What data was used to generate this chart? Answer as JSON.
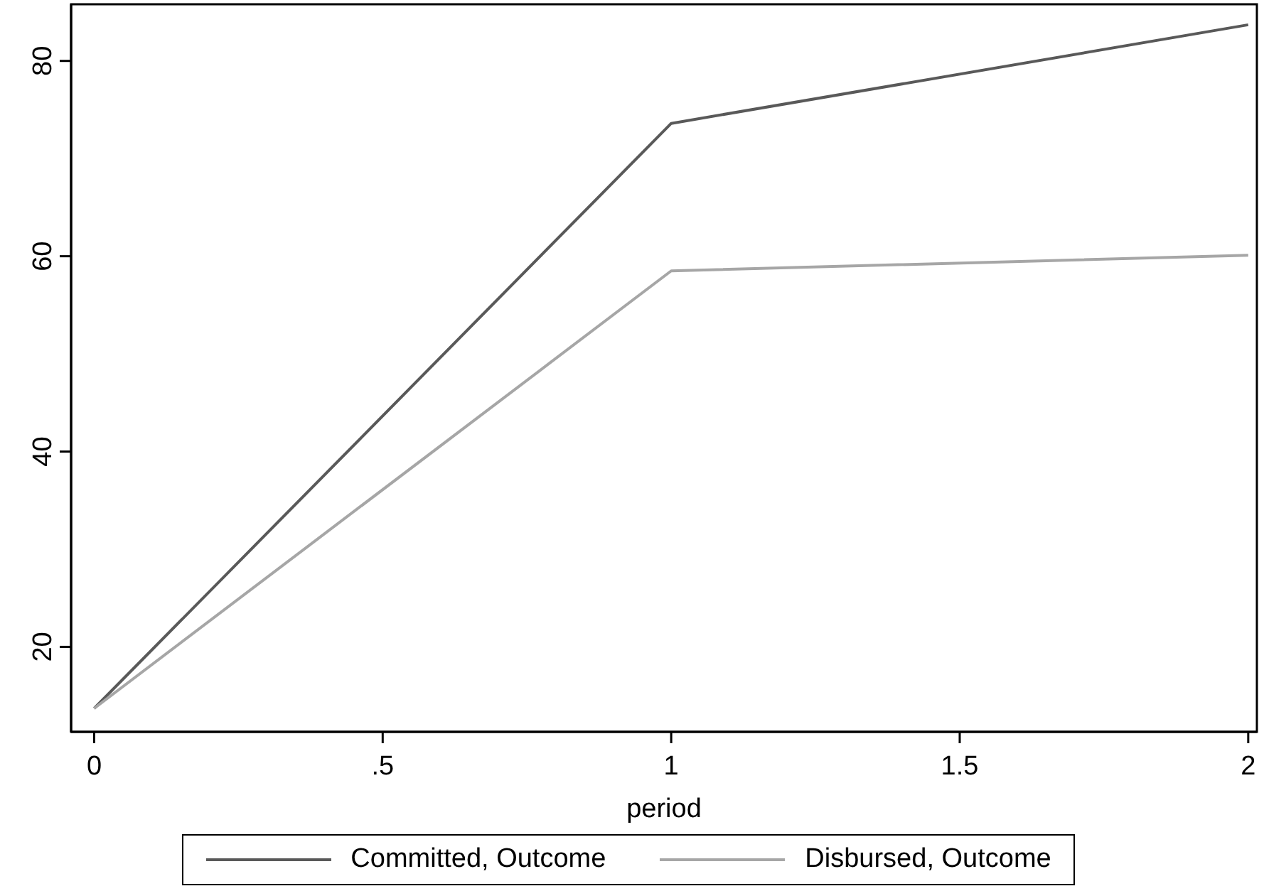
{
  "chart_data": {
    "type": "line",
    "xlabel": "period",
    "x": [
      0,
      1,
      2
    ],
    "series": [
      {
        "name": "Committed, Outcome",
        "color": "#595959",
        "values": [
          13.7,
          73.6,
          83.7
        ]
      },
      {
        "name": "Disbursed, Outcome",
        "color": "#a6a6a6",
        "values": [
          13.7,
          58.5,
          60.1
        ]
      }
    ],
    "xlim": [
      -0.04,
      2.015
    ],
    "xticks": [
      0,
      {
        "value": 0.5,
        "label": ".5"
      },
      1,
      1.5,
      2
    ],
    "ylim": [
      11.3,
      85.8
    ],
    "yticks": [
      20,
      40,
      60,
      80
    ],
    "grid": false,
    "legend": "bottom"
  }
}
